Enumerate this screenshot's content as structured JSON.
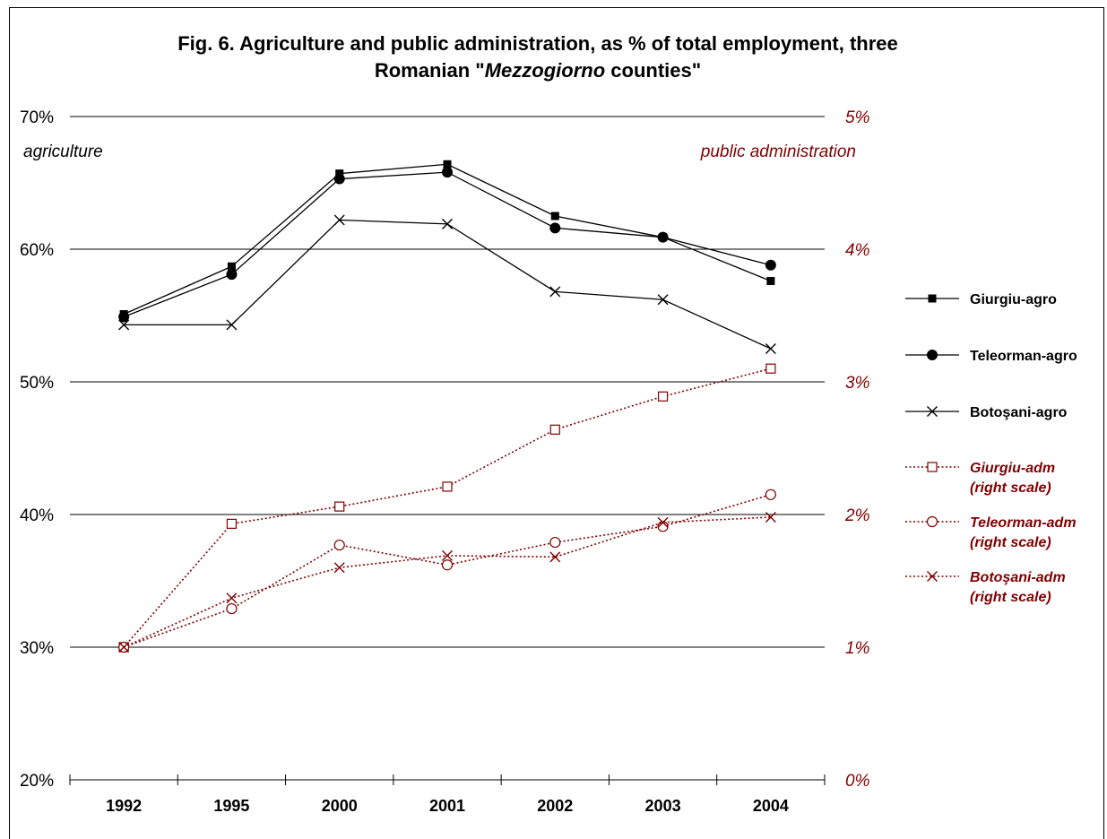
{
  "chart_data": {
    "type": "line",
    "title_part1": "Fig. 6. Agriculture and public administration, as % of total employment,  three",
    "title_part2_pre": "Romanian \"",
    "title_part2_italic": "Mezzogiorno",
    "title_part2_post": " counties\"",
    "categories": [
      "1992",
      "1995",
      "2000",
      "2001",
      "2002",
      "2003",
      "2004"
    ],
    "left_axis": {
      "ticks": [
        "20%",
        "30%",
        "40%",
        "50%",
        "60%",
        "70%"
      ],
      "tick_values": [
        20,
        30,
        40,
        50,
        60,
        70
      ],
      "ylim": [
        20,
        70
      ],
      "annotation": "agriculture"
    },
    "right_axis": {
      "ticks": [
        "0%",
        "1%",
        "2%",
        "3%",
        "4%",
        "5%"
      ],
      "tick_values": [
        0,
        1,
        2,
        3,
        4,
        5
      ],
      "ylim": [
        0,
        5
      ],
      "annotation": "public administration"
    },
    "gridlines_at_left_values": [
      30,
      40,
      50,
      60,
      70
    ],
    "series": [
      {
        "name": "Giurgiu-agro",
        "axis": "left",
        "marker": "square-filled",
        "line": "solid",
        "color": "#000000",
        "values": [
          55.1,
          58.7,
          65.7,
          66.4,
          62.5,
          60.9,
          57.6
        ]
      },
      {
        "name": "Teleorman-agro",
        "axis": "left",
        "marker": "circle-filled",
        "line": "solid",
        "color": "#000000",
        "values": [
          54.9,
          58.1,
          65.3,
          65.8,
          61.6,
          60.9,
          58.8
        ]
      },
      {
        "name": "Botoşani-agro",
        "axis": "left",
        "marker": "x",
        "line": "solid",
        "color": "#000000",
        "values": [
          54.3,
          54.3,
          62.2,
          61.9,
          56.8,
          56.2,
          52.5
        ]
      },
      {
        "name": "Giurgiu-adm",
        "name_line2": "(right scale)",
        "axis": "right",
        "marker": "square-open",
        "line": "dotted",
        "color": "#800000",
        "values": [
          1.0,
          1.93,
          2.06,
          2.21,
          2.64,
          2.89,
          3.1
        ]
      },
      {
        "name": "Teleorman-adm",
        "name_line2": "(right scale)",
        "axis": "right",
        "marker": "circle-open",
        "line": "dotted",
        "color": "#800000",
        "values": [
          1.0,
          1.29,
          1.77,
          1.62,
          1.79,
          1.91,
          2.15
        ]
      },
      {
        "name": "Botoşani-adm",
        "name_line2": "(right scale)",
        "axis": "right",
        "marker": "x",
        "line": "dotted",
        "color": "#800000",
        "values": [
          1.0,
          1.37,
          1.6,
          1.69,
          1.68,
          1.94,
          1.98
        ]
      }
    ],
    "legend_position": "right"
  }
}
